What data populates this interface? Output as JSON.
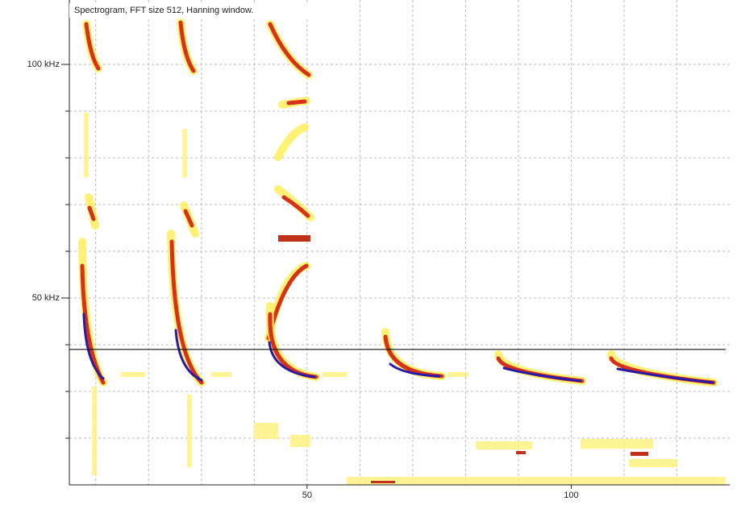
{
  "chart_data": {
    "type": "spectrogram",
    "title": "Spectrogram, FFT size 512, Hanning window.",
    "xlim": [
      5,
      130
    ],
    "xticks": [
      50,
      100
    ],
    "xgrid": [
      10,
      20,
      30,
      40,
      50,
      60,
      70,
      80,
      90,
      100,
      110,
      120
    ],
    "ylim": [
      10,
      110
    ],
    "yticks": [
      {
        "value": 100,
        "label": "100 kHz"
      },
      {
        "value": 50,
        "label": "50 kHz"
      }
    ],
    "ygrid": [
      20,
      30,
      40,
      50,
      60,
      70,
      80,
      90,
      100
    ],
    "hline": 39,
    "grid": true
  }
}
